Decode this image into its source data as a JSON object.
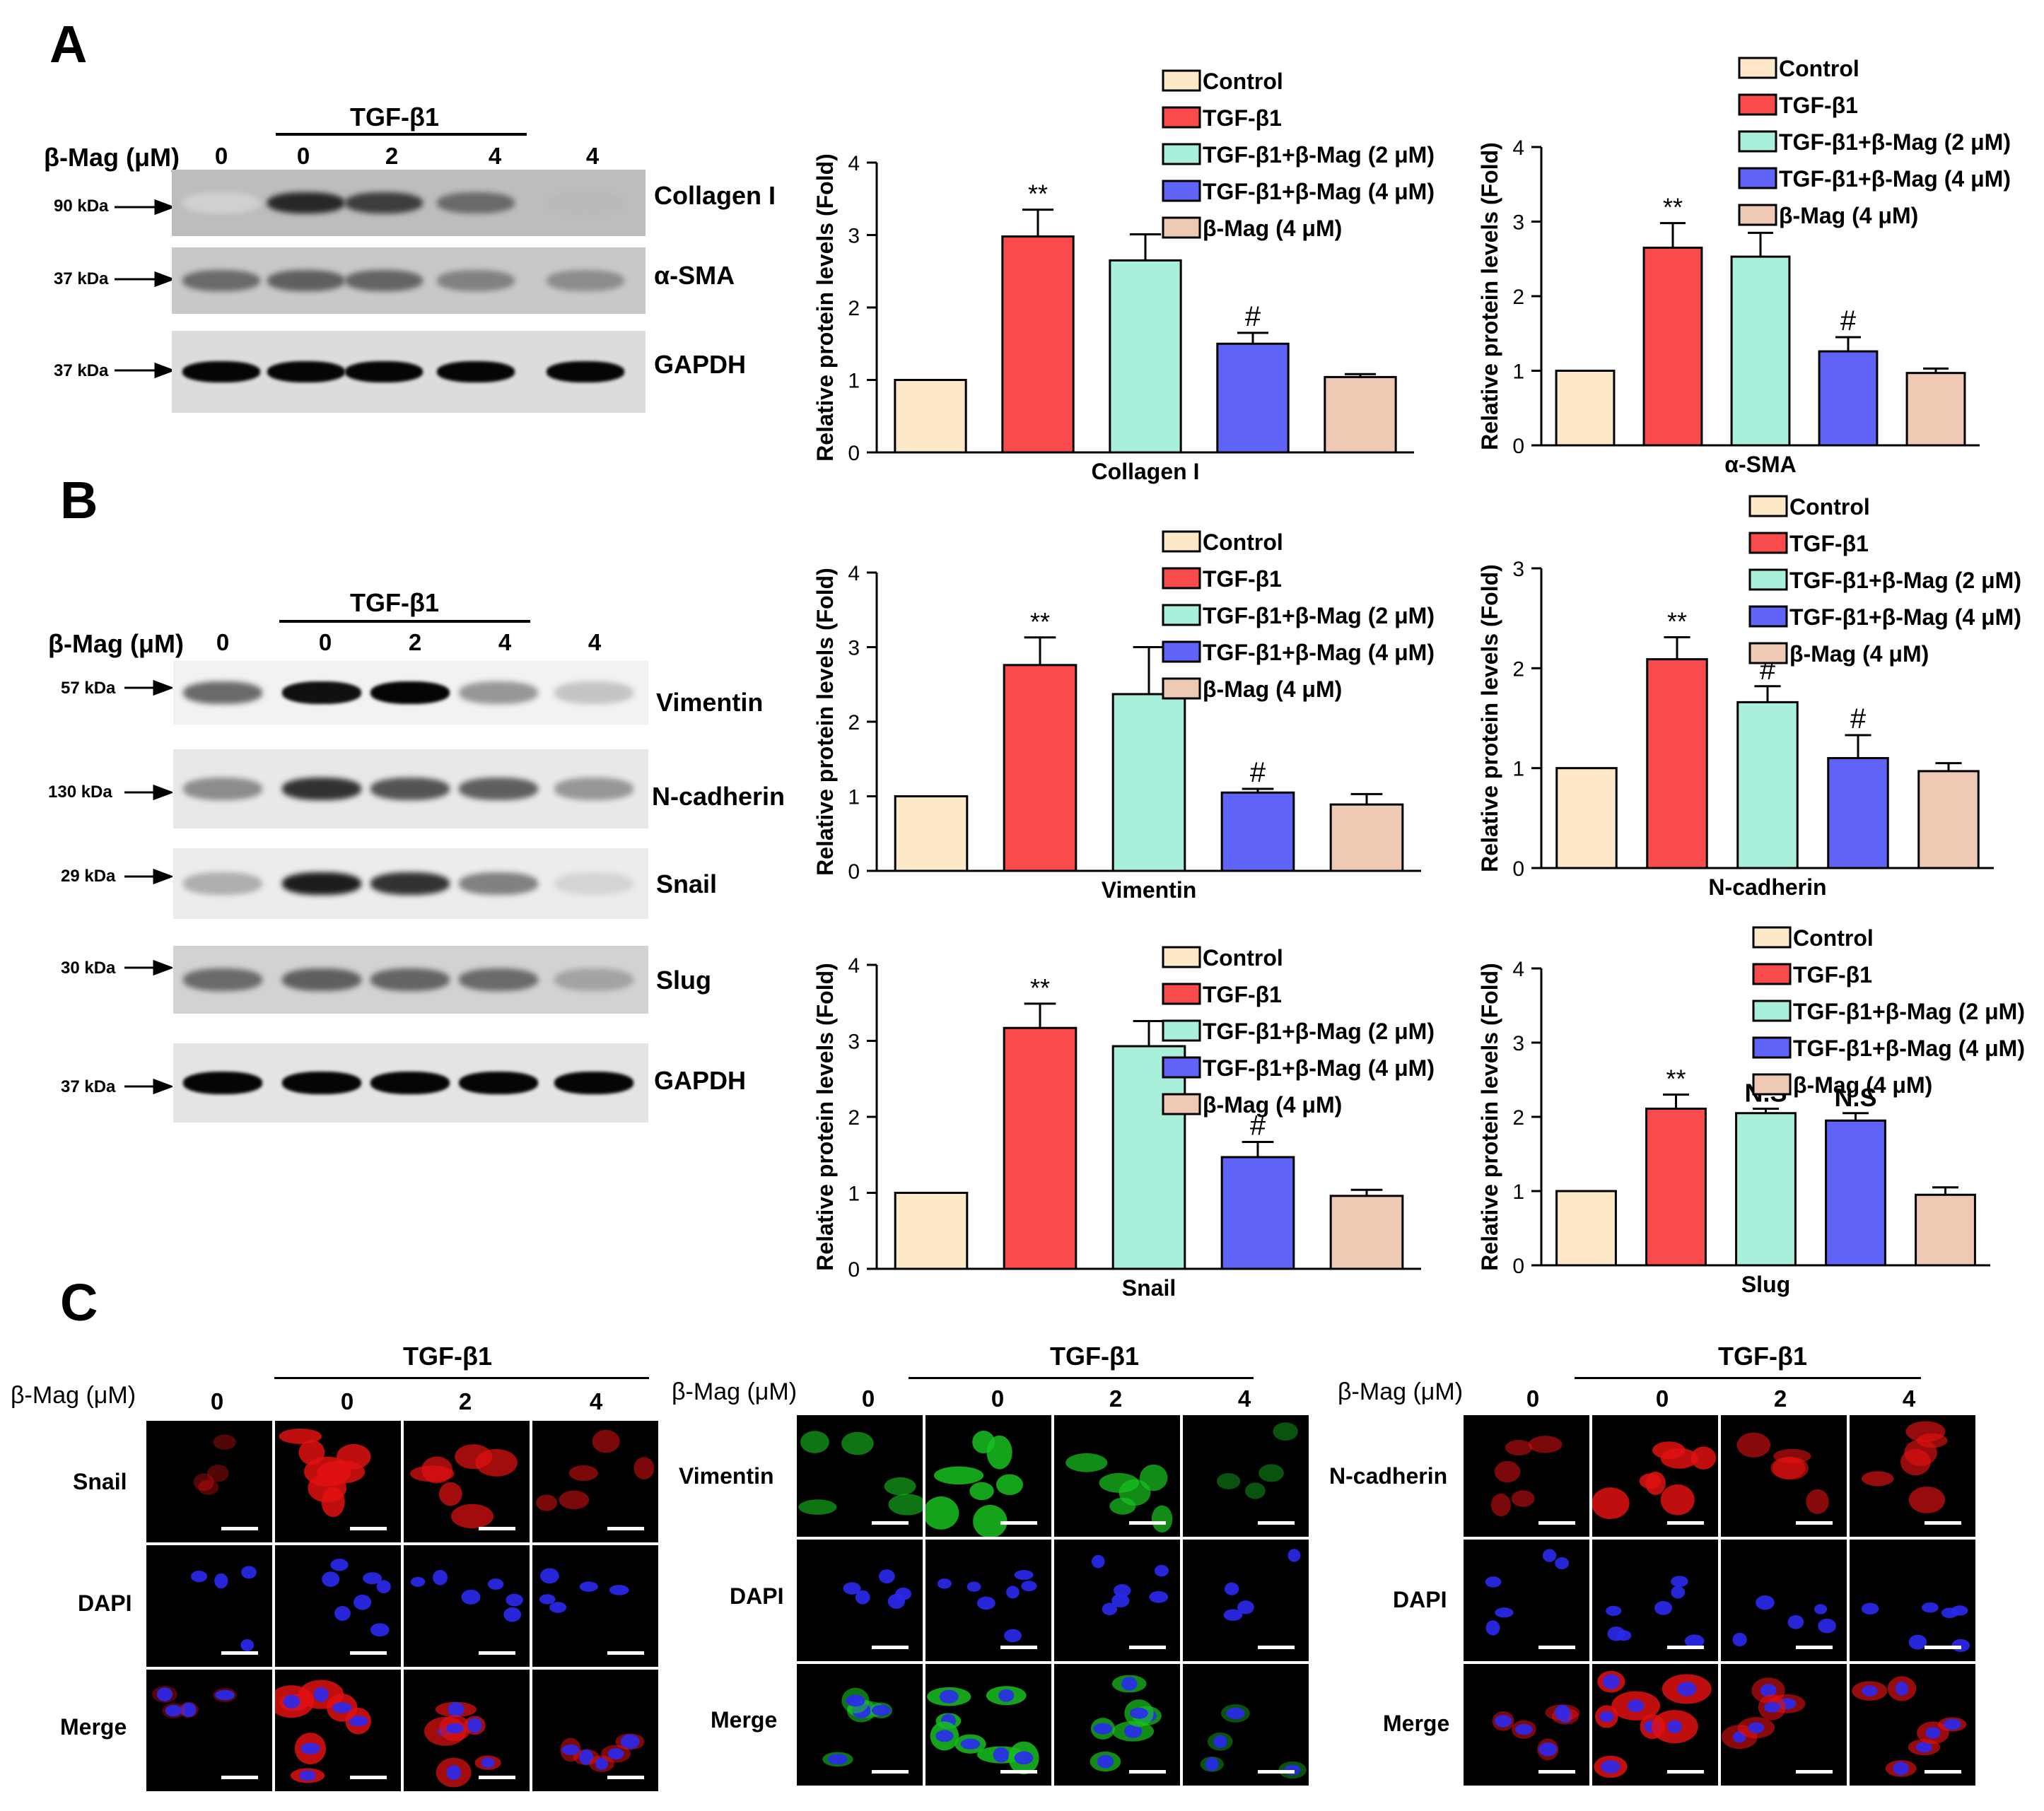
{
  "panels": {
    "A": "A",
    "B": "B",
    "C": "C"
  },
  "treatment": {
    "beta_mag_label": "β-Mag (μM)",
    "tgf_label": "TGF-β1",
    "lanes": [
      "0",
      "0",
      "2",
      "4",
      "4"
    ],
    "conf_lanes": [
      "0",
      "0",
      "2",
      "4"
    ]
  },
  "blots_A": {
    "rows": [
      {
        "protein": "Collagen I",
        "kda": "90 kDa"
      },
      {
        "protein": "α-SMA",
        "kda": "37 kDa"
      },
      {
        "protein": "GAPDH",
        "kda": "37 kDa"
      }
    ],
    "intensity": [
      [
        0.1,
        0.85,
        0.75,
        0.55,
        0.2
      ],
      [
        0.55,
        0.6,
        0.58,
        0.45,
        0.4
      ],
      [
        1,
        1,
        1,
        1,
        1
      ]
    ]
  },
  "blots_B": {
    "rows": [
      {
        "protein": "Vimentin",
        "kda": "57 kDa"
      },
      {
        "protein": "N-cadherin",
        "kda": "130 kDa"
      },
      {
        "protein": "Snail",
        "kda": "29 kDa"
      },
      {
        "protein": "Slug",
        "kda": "30 kDa"
      },
      {
        "protein": "GAPDH",
        "kda": "37 kDa"
      }
    ],
    "intensity": [
      [
        0.55,
        0.95,
        1.0,
        0.35,
        0.15
      ],
      [
        0.4,
        0.8,
        0.65,
        0.6,
        0.35
      ],
      [
        0.25,
        0.9,
        0.8,
        0.45,
        0.08
      ],
      [
        0.55,
        0.6,
        0.58,
        0.55,
        0.3
      ],
      [
        1,
        1,
        1,
        1,
        1
      ]
    ]
  },
  "legend": {
    "items": [
      "Control",
      "TGF-β1",
      "TGF-β1+β-Mag (2 μM)",
      "TGF-β1+β-Mag (4 μM)",
      "β-Mag (4 μM)"
    ]
  },
  "colors": {
    "series": [
      "#fde8c8",
      "#f94b4b",
      "#a9f0dc",
      "#5f63f7",
      "#efc9b4"
    ]
  },
  "chart_data": [
    {
      "type": "bar",
      "title": "Collagen I",
      "xlabel": "Collagen I",
      "ylabel": "Relative protein levels (Fold)",
      "categories": [
        "Control",
        "TGF-β1",
        "TGF-β1+β-Mag (2 μM)",
        "TGF-β1+β-Mag (4 μM)",
        "β-Mag (4 μM)"
      ],
      "values": [
        1.0,
        2.98,
        2.65,
        1.5,
        1.04
      ],
      "errors": [
        0,
        0.37,
        0.36,
        0.15,
        0.04
      ],
      "annotations": [
        "",
        "**",
        "",
        "#",
        ""
      ],
      "ylim": [
        0,
        4
      ],
      "yticks": [
        "0",
        "1",
        "2",
        "3",
        "4"
      ]
    },
    {
      "type": "bar",
      "title": "α-SMA",
      "xlabel": "α-SMA",
      "ylabel": "Relative protein levels (Fold)",
      "categories": [
        "Control",
        "TGF-β1",
        "TGF-β1+β-Mag (2 μM)",
        "TGF-β1+β-Mag (4 μM)",
        "β-Mag (4 μM)"
      ],
      "values": [
        1.0,
        2.65,
        2.53,
        1.26,
        0.97
      ],
      "errors": [
        0,
        0.33,
        0.32,
        0.19,
        0.06
      ],
      "annotations": [
        "",
        "**",
        "",
        "#",
        ""
      ],
      "ylim": [
        0,
        4
      ],
      "yticks": [
        "0",
        "1",
        "2",
        "3",
        "4"
      ]
    },
    {
      "type": "bar",
      "title": "Vimentin",
      "xlabel": "Vimentin",
      "ylabel": "Relative protein levels (Fold)",
      "categories": [
        "Control",
        "TGF-β1",
        "TGF-β1+β-Mag (2 μM)",
        "TGF-β1+β-Mag (4 μM)",
        "β-Mag (4 μM)"
      ],
      "values": [
        1.0,
        2.76,
        2.37,
        1.05,
        0.89
      ],
      "errors": [
        0,
        0.37,
        0.63,
        0.05,
        0.14
      ],
      "annotations": [
        "",
        "**",
        "",
        "#",
        ""
      ],
      "ylim": [
        0,
        4
      ],
      "yticks": [
        "0",
        "1",
        "2",
        "3",
        "4"
      ]
    },
    {
      "type": "bar",
      "title": "N-cadherin",
      "xlabel": "N-cadherin",
      "ylabel": "Relative protein levels (Fold)",
      "categories": [
        "Control",
        "TGF-β1",
        "TGF-β1+β-Mag (2 μM)",
        "TGF-β1+β-Mag (4 μM)",
        "β-Mag (4 μM)"
      ],
      "values": [
        1.0,
        2.09,
        1.66,
        1.1,
        0.97
      ],
      "errors": [
        0,
        0.22,
        0.16,
        0.23,
        0.08
      ],
      "annotations": [
        "",
        "**",
        "#",
        "#",
        ""
      ],
      "ylim": [
        0,
        3
      ],
      "yticks": [
        "0",
        "1",
        "2",
        "3"
      ]
    },
    {
      "type": "bar",
      "title": "Snail",
      "xlabel": "Snail",
      "ylabel": "Relative protein levels (Fold)",
      "categories": [
        "Control",
        "TGF-β1",
        "TGF-β1+β-Mag (2 μM)",
        "TGF-β1+β-Mag (4 μM)",
        "β-Mag (4 μM)"
      ],
      "values": [
        1.0,
        3.17,
        2.93,
        1.47,
        0.96
      ],
      "errors": [
        0,
        0.32,
        0.33,
        0.2,
        0.08
      ],
      "annotations": [
        "",
        "**",
        "",
        "#",
        ""
      ],
      "ylim": [
        0,
        4
      ],
      "yticks": [
        "0",
        "1",
        "2",
        "3",
        "4"
      ]
    },
    {
      "type": "bar",
      "title": "Slug",
      "xlabel": "Slug",
      "ylabel": "Relative protein levels (Fold)",
      "categories": [
        "Control",
        "TGF-β1",
        "TGF-β1+β-Mag (2 μM)",
        "TGF-β1+β-Mag (4 μM)",
        "β-Mag (4 μM)"
      ],
      "values": [
        1.0,
        2.11,
        2.05,
        1.95,
        0.95
      ],
      "errors": [
        0,
        0.19,
        0.06,
        0.1,
        0.1
      ],
      "annotations": [
        "",
        "**",
        "N.S",
        "N.S",
        ""
      ],
      "ylim": [
        0,
        4
      ],
      "yticks": [
        "0",
        "1",
        "2",
        "3",
        "4"
      ]
    }
  ],
  "confocal": [
    {
      "rows": [
        "Snail",
        "DAPI",
        "Merge"
      ],
      "stain_color": "#e01010"
    },
    {
      "rows": [
        "Vimentin",
        "DAPI",
        "Merge"
      ],
      "stain_color": "#18c020"
    },
    {
      "rows": [
        "N-cadherin",
        "DAPI",
        "Merge"
      ],
      "stain_color": "#e01010"
    }
  ]
}
